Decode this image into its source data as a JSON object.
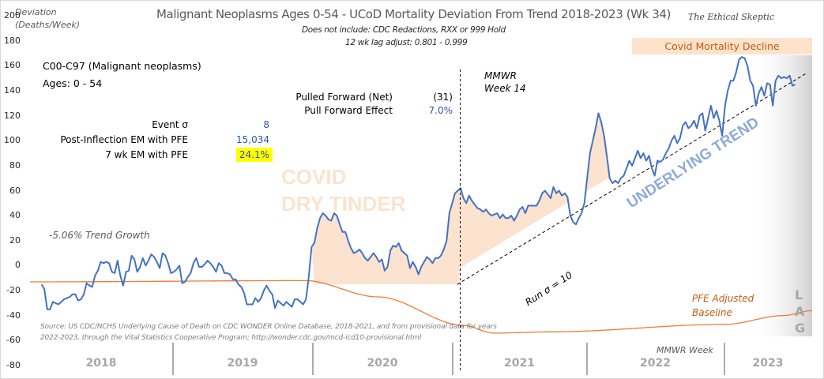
{
  "chart_data": {
    "type": "line",
    "title": "Malignant Neoplasms Ages 0-54 - UCoD Mortality Deviation From Trend  2018-2023 (Wk 34)",
    "subtitles": [
      "Does not include: CDC Redactions,  RXX or 999 Hold",
      "12 wk lag adjust: 0.801 - 0.999"
    ],
    "ylabel_lines": [
      "Deviation",
      "(Deaths/Week)"
    ],
    "xlabel": "MMWR Week",
    "ylim": [
      -80,
      200
    ],
    "yticks": [
      200,
      180,
      160,
      140,
      120,
      100,
      80,
      60,
      40,
      20,
      0,
      -20,
      -40,
      -60,
      -80
    ],
    "categories": [
      "2018",
      "2019",
      "2020",
      "2021",
      "2022",
      "2023"
    ],
    "grid": false,
    "legend": "none",
    "series": [
      {
        "name": "C00-C97 (Malignant neoplasms) Ages 0-54 deviation",
        "color": "#4472c4",
        "start_week_index": 8,
        "values": [
          -15,
          -19,
          -35,
          -35,
          -29,
          -30,
          -31,
          -29,
          -27,
          -26,
          -25,
          -23,
          -23,
          -28,
          -27,
          -23,
          -14,
          -16,
          -17,
          -8,
          -4,
          3,
          2,
          3,
          2,
          -5,
          -6,
          4,
          -8,
          -16,
          -5,
          -4,
          8,
          5,
          -5,
          -1,
          6,
          0,
          4,
          9,
          7,
          3,
          -2,
          10,
          8,
          2,
          -6,
          -5,
          -3,
          0,
          -14,
          -13,
          -9,
          -6,
          2,
          6,
          -1,
          -1,
          1,
          4,
          2,
          -1,
          -5,
          2,
          0,
          -6,
          -6,
          -7,
          -11,
          -11,
          -15,
          -17,
          -22,
          -31,
          -31,
          -31,
          -26,
          -29,
          -26,
          -20,
          -16,
          -20,
          -23,
          -34,
          -28,
          -30,
          -32,
          -29,
          -31,
          -33,
          -27,
          -27,
          -29,
          -31,
          -27,
          -9,
          15,
          18,
          30,
          38,
          42,
          40,
          37,
          36,
          42,
          40,
          33,
          27,
          27,
          20,
          14,
          10,
          11,
          13,
          10,
          6,
          4,
          7,
          10,
          7,
          3,
          5,
          -4,
          -1,
          12,
          16,
          15,
          18,
          12,
          10,
          8,
          -2,
          3,
          -1,
          -7,
          -1,
          3,
          7,
          5,
          2,
          6,
          6,
          8,
          13,
          20,
          42,
          50,
          58,
          60,
          62,
          54,
          50,
          56,
          52,
          49,
          46,
          45,
          43,
          45,
          42,
          40,
          41,
          42,
          38,
          41,
          38,
          38,
          40,
          36,
          40,
          45,
          47,
          42,
          48,
          48,
          48,
          48,
          52,
          58,
          60,
          57,
          54,
          63,
          58,
          60,
          56,
          58,
          55,
          40,
          35,
          33,
          38,
          42,
          50,
          70,
          90,
          100,
          110,
          122,
          115,
          104,
          88,
          70,
          66,
          68,
          66,
          70,
          72,
          78,
          84,
          80,
          86,
          92,
          86,
          90,
          84,
          88,
          78,
          72,
          84,
          83,
          85,
          90,
          94,
          100,
          104,
          98,
          102,
          112,
          115,
          110,
          112,
          116,
          110,
          120,
          122,
          108,
          118,
          128,
          118,
          124,
          116,
          104,
          128,
          140,
          148,
          148,
          155,
          165,
          167,
          166,
          160,
          148,
          144,
          128,
          138,
          143,
          136,
          146,
          145,
          128,
          148,
          152,
          150,
          151,
          150,
          152,
          144,
          145
        ],
        "fill_to_baseline_color": "#fbe3cf"
      },
      {
        "name": "PFE Adjusted Baseline",
        "color": "#ed7d31",
        "points": [
          [
            0,
            -13
          ],
          [
            190,
            -12
          ],
          [
            240,
            -25
          ],
          [
            300,
            -48
          ],
          [
            320,
            -54
          ],
          [
            360,
            -53
          ],
          [
            480,
            -47
          ],
          [
            520,
            -40
          ],
          [
            540,
            -36
          ]
        ]
      },
      {
        "name": "Underlying Trend (Run σ = 10)",
        "color": "#000000",
        "style": "dashed",
        "points": [
          [
            295,
            -15
          ],
          [
            536,
            154
          ]
        ]
      }
    ],
    "total_weeks": 540,
    "annotations": {
      "mmwr_week14_marker_week": 297,
      "covid_dry_tinder": [
        "COVID",
        "DRY TINDER"
      ],
      "underlying_trend": "UNDERLYING TREND",
      "run_sigma": "Run σ = 10",
      "trend_growth": "-5.06% Trend Growth",
      "pfe_baseline": [
        "PFE Adjusted",
        "Baseline"
      ],
      "lag": [
        "L",
        "A",
        "G"
      ],
      "mmwr_week14": [
        "MMWR",
        "Week 14"
      ],
      "covid_decline": "Covid Mortality Decline"
    }
  },
  "series_label": "C00-C97 (Malignant neoplasms)",
  "ages_label": "Ages: 0 - 54",
  "stats": {
    "event_sigma_label": "Event σ",
    "event_sigma_value": "8",
    "post_inflection_label": "Post-Inflection EM with PFE",
    "post_inflection_value": "15,034",
    "seven_wk_label": "7 wk EM with PFE",
    "seven_wk_value": "24.1%",
    "pulled_forward_label": "Pulled Forward (Net)",
    "pulled_forward_value": "(31)",
    "pull_forward_effect_label": "Pull Forward Effect",
    "pull_forward_effect_value": "7.0%"
  },
  "brand": "The Ethical Skeptic",
  "source_lines": [
    "Source: US CDC/NCHS Underlying Cause of Death on CDC WONDER Online Database, 2018-2021, and from provisional data for years",
    "2022-2023, through the Vital Statistics Cooperative Program; http://wonder.cdc.gov/mcd-icd10-provisional.html"
  ]
}
